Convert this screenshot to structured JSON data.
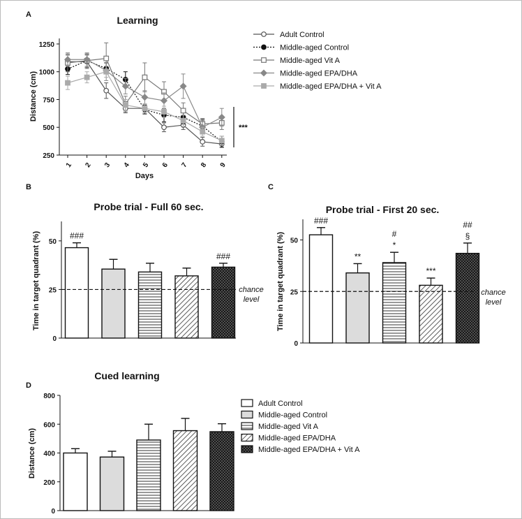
{
  "panel_letters": [
    "A",
    "B",
    "C",
    "D"
  ],
  "chance_label": [
    "chance",
    "level"
  ],
  "chart_data": [
    {
      "panel": "A",
      "type": "line",
      "title": "Learning",
      "xlabel": "Days",
      "ylabel": "Distance (cm)",
      "x": [
        1,
        2,
        3,
        4,
        5,
        6,
        7,
        8,
        9
      ],
      "ylim": [
        250,
        1300
      ],
      "yticks": [
        250,
        500,
        750,
        1000,
        1250
      ],
      "yticklabels": [
        "250",
        "500",
        "750",
        "1000",
        "1250"
      ],
      "grid": false,
      "legend_position": "right",
      "significance": "***",
      "series": [
        {
          "name": "Adult Control",
          "marker": "circle-open",
          "dash": "solid",
          "color": "#555555",
          "values": [
            1090,
            1090,
            830,
            670,
            670,
            500,
            520,
            370,
            350
          ],
          "errors": [
            60,
            60,
            70,
            40,
            40,
            40,
            40,
            40,
            30
          ]
        },
        {
          "name": "Middle-aged Control",
          "marker": "circle-filled",
          "dash": "dotted",
          "color": "#111111",
          "values": [
            1025,
            1100,
            1030,
            930,
            660,
            610,
            590,
            510,
            370
          ],
          "errors": [
            50,
            60,
            50,
            70,
            40,
            60,
            60,
            60,
            50
          ]
        },
        {
          "name": "Middle-aged Vit A",
          "marker": "square-open",
          "dash": "solid",
          "color": "#777777",
          "values": [
            1080,
            1100,
            1120,
            710,
            950,
            820,
            650,
            530,
            540
          ],
          "errors": [
            80,
            60,
            140,
            70,
            130,
            90,
            70,
            50,
            60
          ]
        },
        {
          "name": "Middle-aged EPA/DHA",
          "marker": "diamond-filled",
          "dash": "solid",
          "color": "#888888",
          "values": [
            1110,
            1110,
            1010,
            870,
            770,
            740,
            870,
            500,
            590
          ],
          "errors": [
            60,
            60,
            90,
            70,
            60,
            70,
            110,
            60,
            80
          ]
        },
        {
          "name": "Middle-aged EPA/DHA + Vit A",
          "marker": "square-filled",
          "dash": "solid",
          "color": "#aaaaaa",
          "values": [
            900,
            950,
            1000,
            700,
            670,
            640,
            560,
            460,
            380
          ],
          "errors": [
            60,
            50,
            50,
            50,
            40,
            50,
            50,
            40,
            40
          ]
        }
      ]
    },
    {
      "panel": "B",
      "type": "bar",
      "title": "Probe trial - Full 60 sec.",
      "ylabel": "Time in target quadrant (%)",
      "categories": [
        "Adult Control",
        "Middle-aged Control",
        "Middle-aged Vit A",
        "Middle-aged EPA/DHA",
        "Middle-aged EPA/DHA + Vit A"
      ],
      "values": [
        46.5,
        35.5,
        34,
        32,
        36.5
      ],
      "errors": [
        2.5,
        5,
        4.5,
        4,
        2
      ],
      "ylim": [
        0,
        60
      ],
      "yticks": [
        0,
        25,
        50
      ],
      "yticklabels": [
        "0",
        "25",
        "50"
      ],
      "chance_level": 25,
      "annotations": [
        {
          "bar": 0,
          "lines": [
            "###"
          ]
        },
        {
          "bar": 4,
          "lines": [
            "###"
          ]
        }
      ]
    },
    {
      "panel": "C",
      "type": "bar",
      "title": "Probe trial - First 20 sec.",
      "ylabel": "Time in target quadrant (%)",
      "categories": [
        "Adult Control",
        "Middle-aged Control",
        "Middle-aged Vit A",
        "Middle-aged EPA/DHA",
        "Middle-aged EPA/DHA + Vit A"
      ],
      "values": [
        52.5,
        34,
        39,
        28,
        43.5
      ],
      "errors": [
        3.5,
        4.5,
        5,
        3.5,
        5
      ],
      "ylim": [
        0,
        60
      ],
      "yticks": [
        0,
        25,
        50
      ],
      "yticklabels": [
        "0",
        "25",
        "50"
      ],
      "chance_level": 25,
      "annotations": [
        {
          "bar": 0,
          "lines": [
            "###"
          ]
        },
        {
          "bar": 1,
          "lines": [
            "**"
          ]
        },
        {
          "bar": 2,
          "lines": [
            "#",
            "*"
          ]
        },
        {
          "bar": 3,
          "lines": [
            "***"
          ]
        },
        {
          "bar": 4,
          "lines": [
            "##",
            "§"
          ]
        }
      ]
    },
    {
      "panel": "D",
      "type": "bar",
      "title": "Cued learning",
      "ylabel": "Distance (cm)",
      "categories": [
        "Adult Control",
        "Middle-aged Control",
        "Middle-aged Vit A",
        "Middle-aged EPA/DHA",
        "Middle-aged EPA/DHA + Vit A"
      ],
      "values": [
        400,
        372,
        490,
        555,
        548
      ],
      "errors": [
        30,
        40,
        110,
        85,
        55
      ],
      "ylim": [
        0,
        800
      ],
      "yticks": [
        0,
        200,
        400,
        600,
        800
      ],
      "yticklabels": [
        "0",
        "200",
        "400",
        "600",
        "800"
      ],
      "legend_position": "right",
      "legend": [
        "Adult Control",
        "Middle-aged Control",
        "Middle-aged Vit A",
        "Middle-aged EPA/DHA",
        "Middle-aged EPA/DHA + Vit A"
      ]
    }
  ]
}
